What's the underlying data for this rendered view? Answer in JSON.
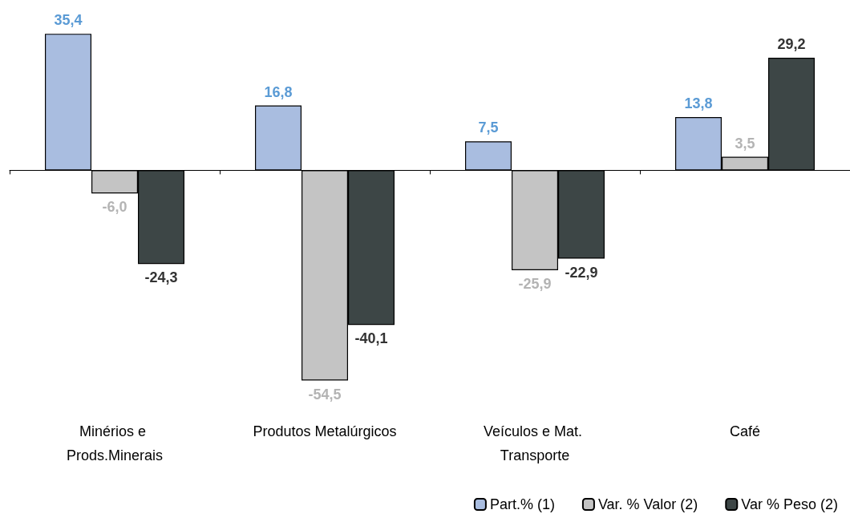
{
  "chart_data": {
    "type": "bar",
    "categories": [
      "Minérios e Prods.Minerais",
      "Produtos Metalúrgicos",
      "Veículos e Mat. Transporte",
      "Café"
    ],
    "series": [
      {
        "name": "Part.% (1)",
        "color": "#a9bde0",
        "values": [
          35.4,
          16.8,
          7.5,
          13.8
        ],
        "value_labels": [
          "35,4",
          "16,8",
          "7,5",
          "13,8"
        ]
      },
      {
        "name": "Var. % Valor (2)",
        "color": "#c4c4c4",
        "values": [
          -6.0,
          -54.5,
          -25.9,
          3.5
        ],
        "value_labels": [
          "-6,0",
          "-54,5",
          "-25,9",
          "3,5"
        ]
      },
      {
        "name": "Var % Peso (2)",
        "color": "#3d4646",
        "values": [
          -24.3,
          -40.1,
          -22.9,
          29.2
        ],
        "value_labels": [
          "-24,3",
          "-40,1",
          "-22,9",
          "29,2"
        ]
      }
    ],
    "legend": "bottom right"
  }
}
